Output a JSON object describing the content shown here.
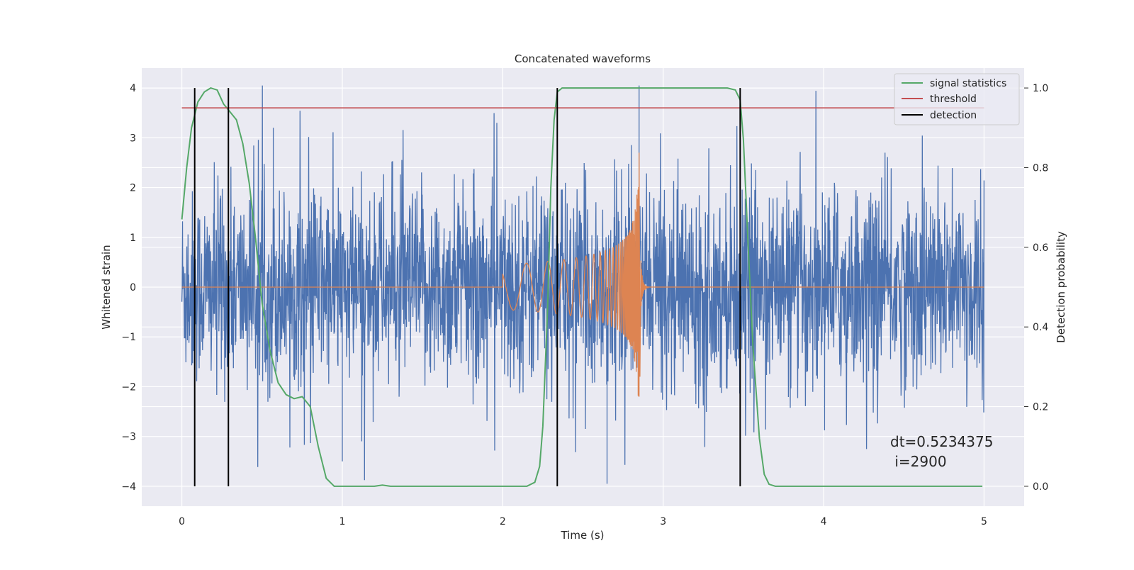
{
  "chart_data": {
    "type": "line",
    "title": "Concatenated waveforms",
    "xlabel": "Time (s)",
    "ylabel": "Whitened strain",
    "y2label": "Detection probability",
    "xlim": [
      -0.25,
      5.25
    ],
    "ylim": [
      -4.4,
      4.4
    ],
    "y2lim": [
      -0.05,
      1.05
    ],
    "xticks": [
      0,
      1,
      2,
      3,
      4,
      5
    ],
    "yticks": [
      -4,
      -3,
      -2,
      -1,
      0,
      1,
      2,
      3,
      4
    ],
    "y2ticks": [
      0.0,
      0.2,
      0.4,
      0.6,
      0.8,
      1.0
    ],
    "xtick_labels": [
      "0",
      "1",
      "2",
      "3",
      "4",
      "5"
    ],
    "ytick_labels": [
      "−4",
      "−3",
      "−2",
      "−1",
      "0",
      "1",
      "2",
      "3",
      "4"
    ],
    "y2tick_labels": [
      "0.0",
      "0.2",
      "0.4",
      "0.6",
      "0.8",
      "1.0"
    ],
    "grid": true,
    "legend_position": "top-right",
    "colors": {
      "strain": "#4c72b0",
      "template": "#dd8452",
      "signal_statistics": "#55a868",
      "threshold": "#c44e52",
      "detection": "#000000",
      "axes_bg": "#eaeaf2",
      "grid": "#ffffff"
    },
    "legend": [
      {
        "label": "signal statistics",
        "color": "#55a868"
      },
      {
        "label": "threshold",
        "color": "#c44e52"
      },
      {
        "label": "detection",
        "color": "#000000"
      }
    ],
    "series": [
      {
        "name": "signal statistics",
        "axis": "right",
        "x": [
          0.0,
          0.03,
          0.06,
          0.1,
          0.14,
          0.18,
          0.22,
          0.26,
          0.3,
          0.34,
          0.38,
          0.42,
          0.46,
          0.5,
          0.55,
          0.6,
          0.65,
          0.7,
          0.75,
          0.8,
          0.85,
          0.9,
          0.95,
          1.0,
          1.2,
          1.25,
          1.3,
          1.5,
          2.0,
          2.15,
          2.2,
          2.23,
          2.25,
          2.28,
          2.3,
          2.32,
          2.34,
          2.37,
          2.4,
          2.6,
          3.0,
          3.4,
          3.45,
          3.48,
          3.5,
          3.53,
          3.56,
          3.6,
          3.63,
          3.66,
          3.7,
          4.0,
          4.5,
          4.99
        ],
        "y": [
          0.67,
          0.8,
          0.9,
          0.965,
          0.99,
          1.0,
          0.995,
          0.96,
          0.94,
          0.92,
          0.86,
          0.76,
          0.62,
          0.46,
          0.34,
          0.26,
          0.23,
          0.22,
          0.225,
          0.2,
          0.1,
          0.02,
          0.0,
          0.0,
          0.0,
          0.003,
          0.0,
          0.0,
          0.0,
          0.0,
          0.01,
          0.05,
          0.15,
          0.45,
          0.75,
          0.92,
          0.99,
          1.0,
          1.0,
          1.0,
          1.0,
          1.0,
          0.995,
          0.97,
          0.87,
          0.6,
          0.35,
          0.12,
          0.03,
          0.005,
          0.0,
          0.0,
          0.0,
          0.0
        ]
      },
      {
        "name": "threshold",
        "axis": "right",
        "x": [
          0.0,
          5.0
        ],
        "y": [
          0.95,
          0.95
        ]
      }
    ],
    "detections": [
      0.08,
      0.29,
      2.34,
      3.48
    ],
    "strain_noise": {
      "x_range": [
        0.0,
        5.0
      ],
      "typical_peak": 2.3,
      "max": 4.05,
      "min": -3.95,
      "spike_times": [
        0.08,
        0.57,
        1.0,
        2.85
      ]
    },
    "template_chirp": {
      "x_range": [
        2.0,
        2.9
      ],
      "start_amplitude": 0.45,
      "peak_time": 2.85,
      "peak_value": 2.7,
      "min_value": -1.8
    },
    "annotation": "dt=0.5234375\n i=2900"
  }
}
